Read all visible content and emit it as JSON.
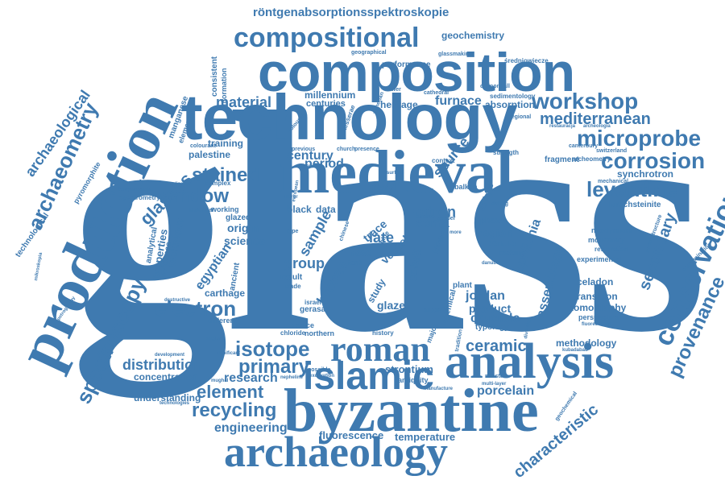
{
  "colors": {
    "word": "#3f7ab0",
    "background": "#ffffff"
  },
  "words": {
    "glass": "glass",
    "technology": "technology",
    "composition": "composition",
    "medieval": "medieval",
    "production": "production",
    "byzantine": "byzantine",
    "analysis": "analysis",
    "archaeology": "archaeology",
    "islamic": "islamic",
    "roman": "roman",
    "compositional": "compositional",
    "rontgen": "röntgenabsorptionsspektroskopie",
    "microprobe": "microprobe",
    "workshop": "workshop",
    "mediterranean": "mediterranean",
    "levantine": "levantine",
    "corrosion": "corrosion",
    "conservation": "conservation",
    "provenance": "provenance",
    "archaeometry": "archaeometry",
    "spectroscopy": "spectroscopy",
    "window": "window",
    "stained": "stained",
    "glasses": "glasses",
    "electron": "electron",
    "isotope": "isotope",
    "primary": "primary",
    "recycling": "recycling",
    "element": "element",
    "engineering": "engineering",
    "distribution": "distribution",
    "concentration": "concentration",
    "ceramic": "ceramic",
    "characteristic": "characteristic",
    "fluorescence": "fluorescence",
    "temperature": "temperature",
    "strontium": "strontium",
    "porcelain": "porcelain",
    "research": "research",
    "understanding": "understanding",
    "material": "material",
    "furnace": "furnace",
    "period": "period",
    "century": "century",
    "geochemistry": "geochemistry",
    "synchrotron": "synchrotron",
    "kirschsteinite": "kirschsteinite",
    "secondary": "secondary",
    "archaeological": "archaeological",
    "jordan": "jordan",
    "product": "product",
    "crucible": "crucible",
    "glaze": "glaze",
    "bronze": "bronze",
    "natron": "natron",
    "group": "group",
    "late": "late",
    "source": "source",
    "heritage": "heritage",
    "millennium": "millennium",
    "centuries": "centuries",
    "absorption": "absorption",
    "performance": "performance",
    "palestine": "palestine",
    "training": "training",
    "egyptian": "egyptian",
    "origin": "origin",
    "science": "science",
    "carthage": "carthage",
    "methodology": "methodology",
    "transition": "transition",
    "tomography": "tomography",
    "celadon": "celadon",
    "region": "region",
    "centre": "centre",
    "assemblage": "assemblage",
    "apollonia": "apollonia",
    "cobalt": "cobalt",
    "epma": "epma",
    "sample": "sample",
    "vessel": "vessel",
    "trace": "trace",
    "rose": "rose",
    "study": "study",
    "iron": "iron",
    "mary": "mary",
    "black": "black",
    "data": "data",
    "gerasa": "gerasa",
    "israel": "israel",
    "venice": "venice",
    "northern": "northern",
    "history": "history",
    "chloride": "chloride",
    "result": "result",
    "trade": "trade",
    "tank": "tank",
    "different": "different",
    "ancient": "ancient",
    "evidence": "evidence",
    "technique": "technique",
    "properties": "properties",
    "analytical": "analytical",
    "glazed": "glazed",
    "chemical": "chemical",
    "plant": "plant",
    "phase": "phase",
    "making": "making",
    "typology": "typology",
    "fragment": "fragment",
    "archeometry": "archeometry",
    "mechanical": "mechanical",
    "neodymium": "neodymium",
    "monastery": "monastery",
    "restoration": "restoration",
    "experimental": "experimental",
    "perspective": "perspective",
    "contamination": "contamination",
    "microstructure": "microstructure",
    "switzerland": "switzerland",
    "canterbury": "canterbury",
    "strength": "strength",
    "regional": "regional",
    "antique": "antique",
    "balkan": "balkan",
    "context": "context",
    "sedimentology": "sedimentology",
    "cathedral": "cathedral",
    "glassmaking": "glassmaking",
    "cannonball": "cannonball",
    "geographical": "geographical",
    "sredniowiecze": "średniowiecze",
    "consistent": "consistent",
    "information": "information",
    "manganese": "manganese",
    "elemental": "elemental",
    "pyromorphite": "pyromorphite",
    "technological": "technological",
    "spectrometry": "spectrometry",
    "konserwacja": "konserwacja",
    "complex": "complex",
    "replication": "replication",
    "historical": "historical",
    "working": "working",
    "mikroskopia": "mikroskopia",
    "petrography": "petrography",
    "destructive": "destructive",
    "development": "development",
    "significant": "significant",
    "england": "england",
    "mughal": "mughal",
    "possible": "possible",
    "excavation": "excavation",
    "nepheline": "nepheline",
    "antiquity": "antiquity",
    "manufacture": "manufacture",
    "technologies": "technologies",
    "multi_layer": "multi-layer",
    "minster": "minster",
    "geochemical": "geochemical",
    "fluorescence_small": "fluorescence",
    "kubadabad": "kubadabad",
    "diversity": "diversity",
    "copper": "copper",
    "europe": "europe",
    "dating": "dating",
    "levant": "levant",
    "supply": "supply",
    "mirror": "mirror",
    "central": "central",
    "european": "european",
    "colourant": "colourant",
    "previous": "previous",
    "church": "church",
    "presence": "presence",
    "coloured": "coloured",
    "tesserae": "tesserae",
    "venetian": "venetian",
    "sewer": "sewer",
    "type": "type",
    "more": "more",
    "restauracja": "restauracja",
    "archeologia": "archeologia",
    "chinese": "chinese",
    "bluebottle": "blue",
    "major": "major",
    "tradition": "tradition",
    "surface": "surface",
    "danube": "danube"
  }
}
